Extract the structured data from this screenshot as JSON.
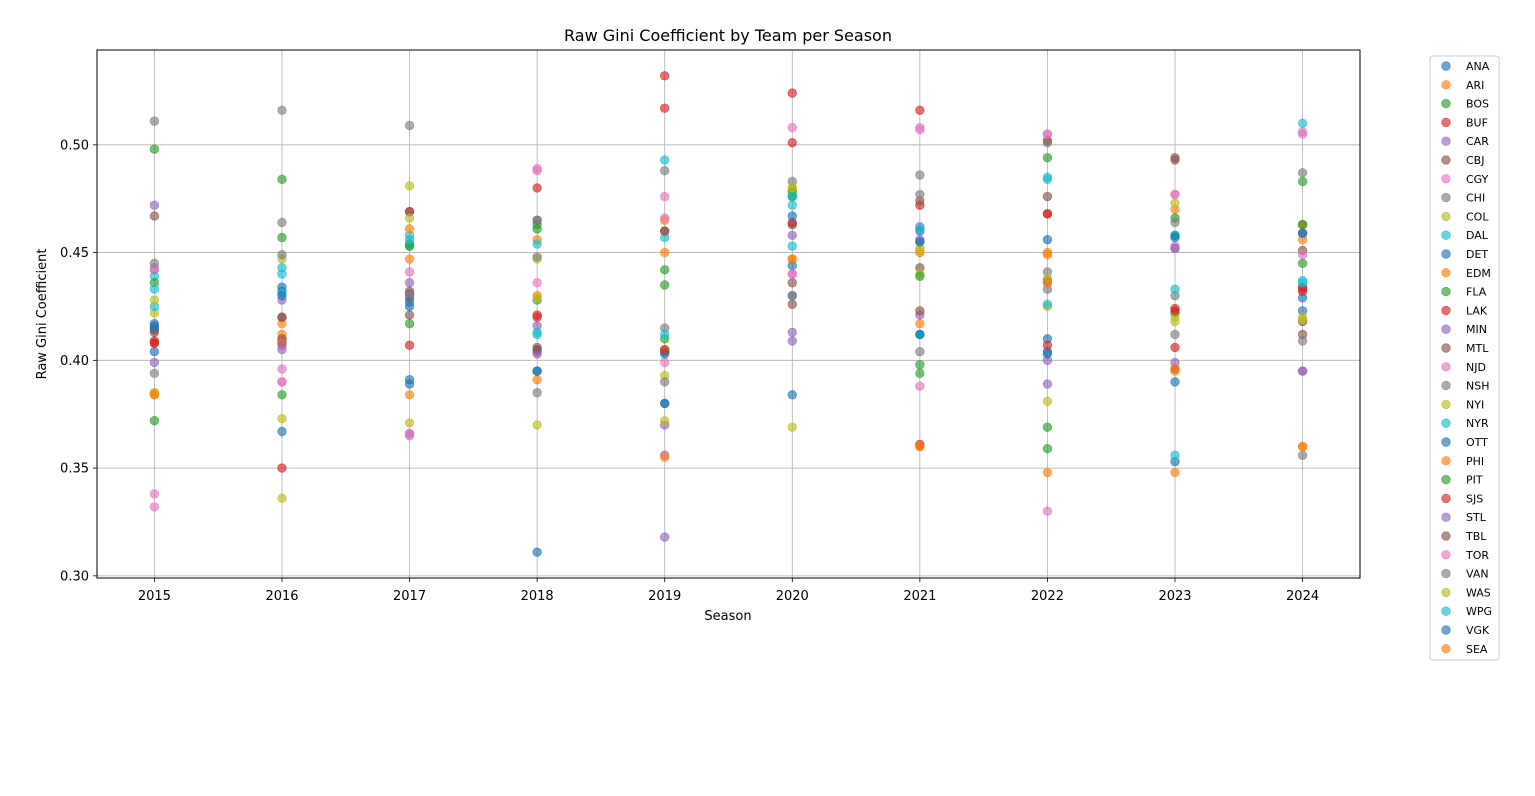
{
  "chart_data": {
    "type": "scatter",
    "title": "Raw Gini Coefficient by Team per Season",
    "xlabel": "Season",
    "ylabel": "Raw Gini Coefficient",
    "x": [
      2015,
      2016,
      2017,
      2018,
      2019,
      2020,
      2021,
      2022,
      2023,
      2024
    ],
    "xlim": [
      2014.55,
      2024.45
    ],
    "ylim": [
      0.299,
      0.544
    ],
    "yticks": [
      "0.30",
      "0.35",
      "0.40",
      "0.45",
      "0.50"
    ],
    "grid": true,
    "legend_position": "outside right",
    "marker_alpha": 0.65,
    "series": [
      {
        "name": "ANA",
        "color": "#1f77b4",
        "values": [
          0.404,
          0.432,
          0.389,
          0.311,
          0.404,
          0.43,
          0.455,
          0.404,
          0.39,
          0.459
        ]
      },
      {
        "name": "ARI",
        "color": "#ff7f0e",
        "values": [
          0.385,
          0.417,
          0.447,
          0.456,
          0.465,
          0.48,
          0.417,
          0.449,
          0.47,
          0.456
        ]
      },
      {
        "name": "BOS",
        "color": "#2ca02c",
        "values": [
          0.498,
          0.484,
          0.454,
          0.463,
          0.442,
          0.476,
          0.398,
          0.494,
          0.422,
          0.483
        ]
      },
      {
        "name": "BUF",
        "color": "#d62728",
        "values": [
          0.409,
          0.409,
          0.429,
          0.48,
          0.532,
          0.501,
          0.472,
          0.468,
          0.406,
          0.434
        ]
      },
      {
        "name": "CAR",
        "color": "#9467bd",
        "values": [
          0.472,
          0.428,
          0.436,
          0.416,
          0.318,
          0.409,
          0.462,
          0.4,
          0.399,
          0.459
        ]
      },
      {
        "name": "CBJ",
        "color": "#8c564b",
        "values": [
          0.467,
          0.42,
          0.421,
          0.465,
          0.46,
          0.463,
          0.443,
          0.476,
          0.493,
          0.451
        ]
      },
      {
        "name": "CGY",
        "color": "#e377c2",
        "values": [
          0.332,
          0.39,
          0.441,
          0.436,
          0.476,
          0.508,
          0.507,
          0.505,
          0.477,
          0.505
        ]
      },
      {
        "name": "CHI",
        "color": "#7f7f7f",
        "values": [
          0.511,
          0.516,
          0.509,
          0.465,
          0.488,
          0.483,
          0.486,
          0.441,
          0.43,
          0.487
        ]
      },
      {
        "name": "COL",
        "color": "#bcbd22",
        "values": [
          0.422,
          0.373,
          0.481,
          0.447,
          0.393,
          0.479,
          0.44,
          0.381,
          0.418,
          0.463
        ]
      },
      {
        "name": "DAL",
        "color": "#17becf",
        "values": [
          0.425,
          0.443,
          0.458,
          0.454,
          0.457,
          0.472,
          0.412,
          0.484,
          0.433,
          0.437
        ]
      },
      {
        "name": "DET",
        "color": "#1f77b4",
        "values": [
          0.416,
          0.367,
          0.391,
          0.405,
          0.38,
          0.384,
          0.46,
          0.41,
          0.353,
          0.423
        ]
      },
      {
        "name": "EDM",
        "color": "#ff7f0e",
        "values": [
          0.384,
          0.412,
          0.384,
          0.391,
          0.45,
          0.447,
          0.36,
          0.348,
          0.348,
          0.36
        ]
      },
      {
        "name": "FLA",
        "color": "#2ca02c",
        "values": [
          0.372,
          0.457,
          0.417,
          0.428,
          0.435,
          0.478,
          0.394,
          0.369,
          0.466,
          0.445
        ]
      },
      {
        "name": "LAK",
        "color": "#d62728",
        "values": [
          0.408,
          0.408,
          0.407,
          0.42,
          0.517,
          0.524,
          0.516,
          0.468,
          0.424,
          0.432
        ]
      },
      {
        "name": "MIN",
        "color": "#9467bd",
        "values": [
          0.399,
          0.405,
          0.431,
          0.405,
          0.356,
          0.413,
          0.421,
          0.389,
          0.452,
          0.395
        ]
      },
      {
        "name": "MTL",
        "color": "#8c564b",
        "values": [
          0.413,
          0.41,
          0.432,
          0.404,
          0.404,
          0.426,
          0.423,
          0.437,
          0.494,
          0.418
        ]
      },
      {
        "name": "NJD",
        "color": "#e377c2",
        "values": [
          0.338,
          0.396,
          0.365,
          0.488,
          0.399,
          0.44,
          0.388,
          0.33,
          0.453,
          0.449
        ]
      },
      {
        "name": "NSH",
        "color": "#7f7f7f",
        "values": [
          0.394,
          0.464,
          0.43,
          0.385,
          0.39,
          0.463,
          0.404,
          0.501,
          0.412,
          0.356
        ]
      },
      {
        "name": "NYI",
        "color": "#bcbd22",
        "values": [
          0.385,
          0.447,
          0.371,
          0.37,
          0.405,
          0.369,
          0.451,
          0.425,
          0.42,
          0.42
        ]
      },
      {
        "name": "NYR",
        "color": "#17becf",
        "values": [
          0.439,
          0.44,
          0.453,
          0.412,
          0.493,
          0.453,
          0.412,
          0.426,
          0.356,
          0.51
        ]
      },
      {
        "name": "OTT",
        "color": "#1f77b4",
        "values": [
          0.417,
          0.434,
          0.425,
          0.395,
          0.403,
          0.444,
          0.412,
          0.456,
          0.458,
          0.429
        ]
      },
      {
        "name": "PHI",
        "color": "#ff7f0e",
        "values": [
          0.384,
          0.408,
          0.461,
          0.43,
          0.355,
          0.447,
          0.45,
          0.45,
          0.395,
          0.463
        ]
      },
      {
        "name": "PIT",
        "color": "#2ca02c",
        "values": [
          0.436,
          0.384,
          0.453,
          0.461,
          0.41,
          0.476,
          0.439,
          0.359,
          0.458,
          0.463
        ]
      },
      {
        "name": "SJS",
        "color": "#d62728",
        "values": [
          0.408,
          0.35,
          0.469,
          0.421,
          0.405,
          0.464,
          0.361,
          0.407,
          0.423,
          0.433
        ]
      },
      {
        "name": "STL",
        "color": "#9467bd",
        "values": [
          0.442,
          0.407,
          0.366,
          0.403,
          0.37,
          0.458,
          0.456,
          0.436,
          0.452,
          0.395
        ]
      },
      {
        "name": "TBL",
        "color": "#8c564b",
        "values": [
          0.414,
          0.42,
          0.469,
          0.406,
          0.46,
          0.436,
          0.474,
          0.502,
          0.396,
          0.412
        ]
      },
      {
        "name": "TOR",
        "color": "#e377c2",
        "values": [
          0.443,
          0.39,
          0.366,
          0.489,
          0.466,
          0.44,
          0.508,
          0.505,
          0.477,
          0.506
        ]
      },
      {
        "name": "VAN",
        "color": "#7f7f7f",
        "values": [
          0.445,
          0.449,
          0.431,
          0.448,
          0.415,
          0.43,
          0.477,
          0.433,
          0.464,
          0.409
        ]
      },
      {
        "name": "WAS",
        "color": "#bcbd22",
        "values": [
          0.428,
          0.336,
          0.466,
          0.429,
          0.372,
          0.48,
          0.452,
          0.438,
          0.473,
          0.419
        ]
      },
      {
        "name": "WPG",
        "color": "#17becf",
        "values": [
          0.433,
          0.431,
          0.456,
          0.413,
          0.412,
          0.476,
          0.461,
          0.485,
          0.458,
          0.436
        ]
      },
      {
        "name": "VGK",
        "color": "#1f77b4",
        "values": [
          0.415,
          0.43,
          0.427,
          0.395,
          0.38,
          0.467,
          0.455,
          0.403,
          0.457,
          0.459
        ]
      },
      {
        "name": "SEA",
        "color": "#ff7f0e",
        "values": [
          null,
          null,
          null,
          null,
          null,
          null,
          0.36,
          0.436,
          0.396,
          0.36
        ]
      }
    ]
  }
}
